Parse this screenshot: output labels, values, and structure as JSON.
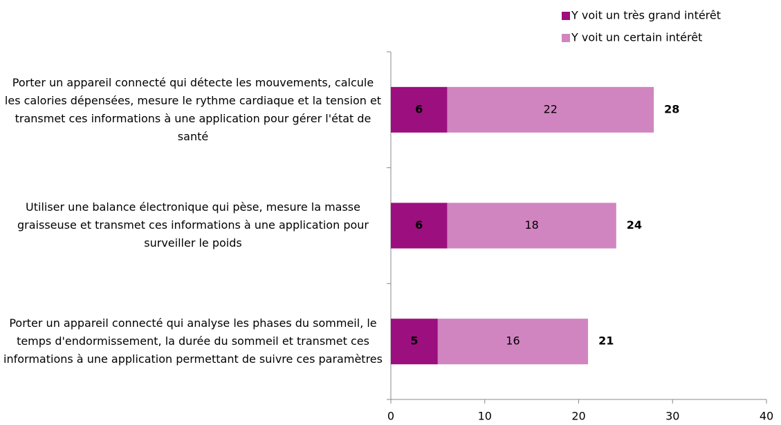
{
  "chart_data": {
    "type": "stacked-bar-horizontal",
    "categories": [
      "Porter un appareil connecté qui détecte les mouvements, calcule les calories dépensées, mesure le rythme cardiaque et la tension et transmet ces informations à une application pour gérer l'état de santé",
      "Utiliser une balance électronique qui pèse, mesure la masse graisseuse et transmet ces informations à une application pour surveiller le poids",
      "Porter un appareil connecté qui analyse les phases du sommeil, le temps d'endormissement, la durée du sommeil et transmet ces informations à une application permettant de suivre ces paramètres"
    ],
    "series": [
      {
        "name": "Y voit un très grand intérêt",
        "color": "#9b0f7f",
        "values": [
          6,
          6,
          5
        ]
      },
      {
        "name": "Y voit un certain intérêt",
        "color": "#d085c1",
        "values": [
          22,
          18,
          16
        ]
      }
    ],
    "totals": [
      28,
      24,
      21
    ],
    "xlim": [
      0,
      40
    ],
    "xticks": [
      0,
      10,
      20,
      30,
      40
    ],
    "legend": "top-right"
  }
}
